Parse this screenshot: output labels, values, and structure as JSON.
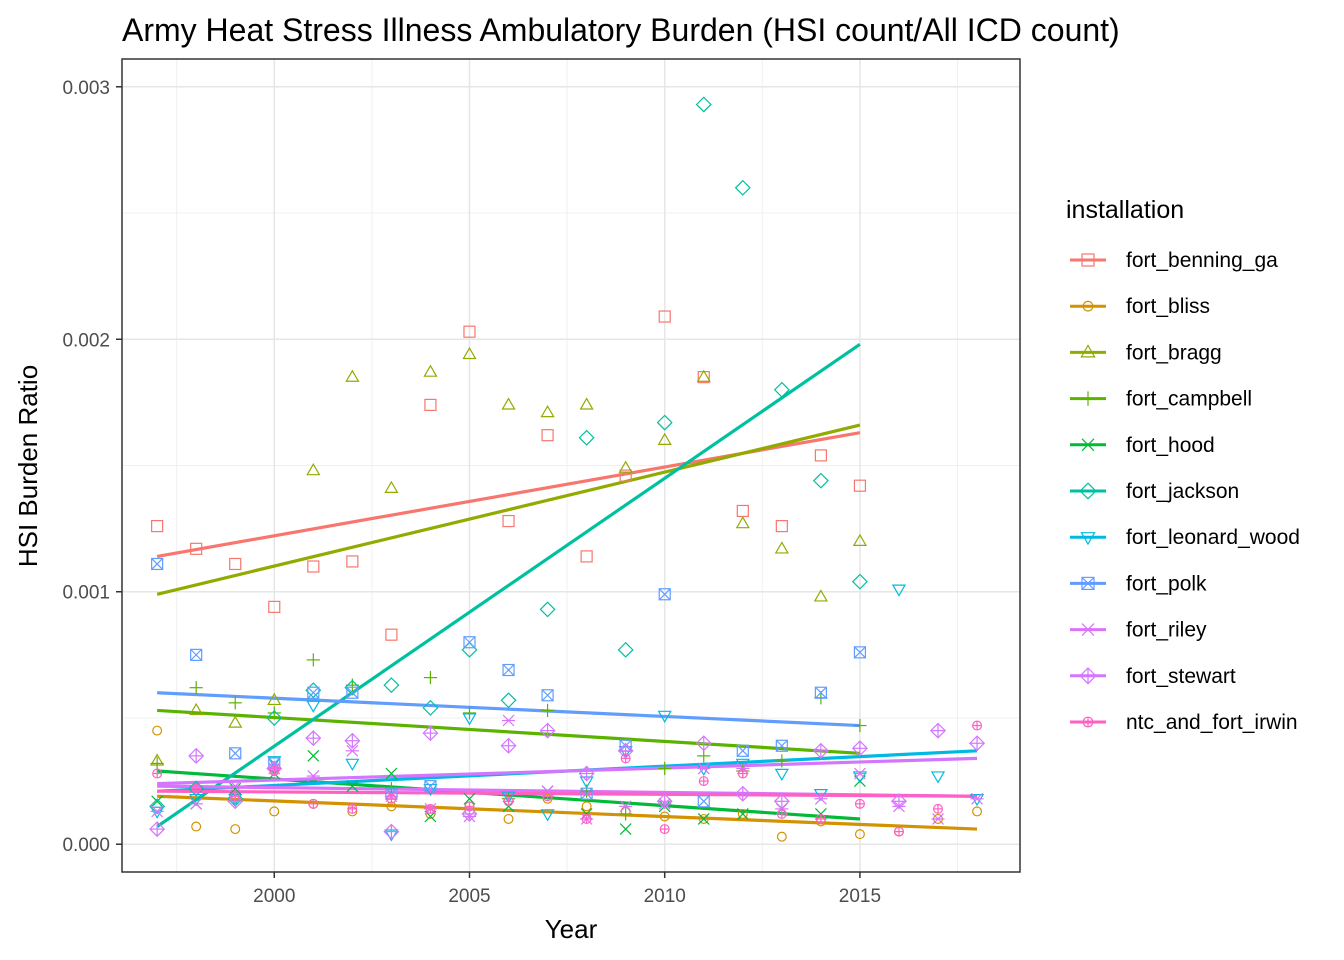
{
  "chart_data": {
    "type": "scatter",
    "title": "Army Heat Stress Illness Ambulatory Burden (HSI count/All ICD count)",
    "xlabel": "Year",
    "ylabel": "HSI Burden Ratio",
    "xlim": [
      1996.1,
      2019.1
    ],
    "ylim": [
      -0.00011,
      0.00311
    ],
    "x_ticks": [
      2000,
      2005,
      2010,
      2015
    ],
    "x_tick_labels": [
      "2000",
      "2005",
      "2010",
      "2015"
    ],
    "y_ticks": [
      0,
      0.001,
      0.002,
      0.003
    ],
    "y_tick_labels": [
      "0.000",
      "0.001",
      "0.002",
      "0.003"
    ],
    "grid": true,
    "legend": {
      "title": "installation",
      "position": "right"
    },
    "series": [
      {
        "name": "fort_benning_ga",
        "color": "#F8766D",
        "marker": "square",
        "points": [
          [
            1997,
            0.00126
          ],
          [
            1998,
            0.00117
          ],
          [
            1999,
            0.00111
          ],
          [
            2000,
            0.00094
          ],
          [
            2001,
            0.0011
          ],
          [
            2002,
            0.00112
          ],
          [
            2003,
            0.00083
          ],
          [
            2004,
            0.00174
          ],
          [
            2005,
            0.00203
          ],
          [
            2006,
            0.00128
          ],
          [
            2007,
            0.00162
          ],
          [
            2008,
            0.00114
          ],
          [
            2009,
            0.00146
          ],
          [
            2010,
            0.00209
          ],
          [
            2011,
            0.00185
          ],
          [
            2012,
            0.00132
          ],
          [
            2013,
            0.00126
          ],
          [
            2014,
            0.00154
          ],
          [
            2015,
            0.00142
          ]
        ],
        "trend": [
          [
            1997,
            0.00114
          ],
          [
            2015,
            0.00163
          ]
        ]
      },
      {
        "name": "fort_bliss",
        "color": "#D39200",
        "marker": "circle",
        "points": [
          [
            1997,
            0.00045
          ],
          [
            1998,
            7e-05
          ],
          [
            1999,
            6e-05
          ],
          [
            2000,
            0.00013
          ],
          [
            2001,
            0.00016
          ],
          [
            2002,
            0.00013
          ],
          [
            2003,
            0.00015
          ],
          [
            2004,
            0.00012
          ],
          [
            2005,
            0.00015
          ],
          [
            2006,
            0.0001
          ],
          [
            2007,
            0.00018
          ],
          [
            2008,
            0.00015
          ],
          [
            2009,
            0.00013
          ],
          [
            2010,
            0.00011
          ],
          [
            2011,
            0.0001
          ],
          [
            2012,
            0.00012
          ],
          [
            2013,
            3e-05
          ],
          [
            2014,
            9e-05
          ],
          [
            2015,
            4e-05
          ],
          [
            2016,
            5e-05
          ],
          [
            2017,
            0.0001
          ],
          [
            2018,
            0.00013
          ]
        ],
        "trend": [
          [
            1997,
            0.00019
          ],
          [
            2018,
            6e-05
          ]
        ]
      },
      {
        "name": "fort_bragg",
        "color": "#93AA00",
        "marker": "triangle",
        "points": [
          [
            1997,
            0.00033
          ],
          [
            1998,
            0.00053
          ],
          [
            1999,
            0.00048
          ],
          [
            2000,
            0.00057
          ],
          [
            2001,
            0.00148
          ],
          [
            2002,
            0.00185
          ],
          [
            2003,
            0.00141
          ],
          [
            2004,
            0.00187
          ],
          [
            2005,
            0.00194
          ],
          [
            2006,
            0.00174
          ],
          [
            2007,
            0.00171
          ],
          [
            2008,
            0.00174
          ],
          [
            2009,
            0.00149
          ],
          [
            2010,
            0.0016
          ],
          [
            2011,
            0.00185
          ],
          [
            2012,
            0.00127
          ],
          [
            2013,
            0.00117
          ],
          [
            2014,
            0.00098
          ],
          [
            2015,
            0.0012
          ]
        ],
        "trend": [
          [
            1997,
            0.00099
          ],
          [
            2015,
            0.00166
          ]
        ]
      },
      {
        "name": "fort_campbell",
        "color": "#5BB300",
        "marker": "plus",
        "points": [
          [
            1997,
            0.00032
          ],
          [
            1998,
            0.00062
          ],
          [
            1999,
            0.00056
          ],
          [
            2000,
            0.00052
          ],
          [
            2001,
            0.00073
          ],
          [
            2002,
            0.00063
          ],
          [
            2003,
            0.00022
          ],
          [
            2004,
            0.00066
          ],
          [
            2005,
            0.00052
          ],
          [
            2006,
            0.00018
          ],
          [
            2007,
            0.00053
          ],
          [
            2008,
            0.00021
          ],
          [
            2009,
            0.00012
          ],
          [
            2010,
            0.0003
          ],
          [
            2011,
            0.00035
          ],
          [
            2012,
            0.00029
          ],
          [
            2013,
            0.00033
          ],
          [
            2014,
            0.00058
          ],
          [
            2015,
            0.00047
          ]
        ],
        "trend": [
          [
            1997,
            0.00053
          ],
          [
            2015,
            0.00036
          ]
        ]
      },
      {
        "name": "fort_hood",
        "color": "#00BA38",
        "marker": "x",
        "points": [
          [
            1997,
            0.00017
          ],
          [
            1998,
            0.00016
          ],
          [
            1999,
            0.00022
          ],
          [
            2000,
            0.00028
          ],
          [
            2001,
            0.00035
          ],
          [
            2002,
            0.00023
          ],
          [
            2003,
            0.00028
          ],
          [
            2004,
            0.00011
          ],
          [
            2005,
            0.00018
          ],
          [
            2006,
            0.00015
          ],
          [
            2007,
            0.00021
          ],
          [
            2008,
            0.00012
          ],
          [
            2009,
            6e-05
          ],
          [
            2010,
            0.00015
          ],
          [
            2011,
            0.0001
          ],
          [
            2012,
            0.00012
          ],
          [
            2013,
            0.00014
          ],
          [
            2014,
            0.00012
          ],
          [
            2015,
            0.00025
          ]
        ],
        "trend": [
          [
            1997,
            0.00029
          ],
          [
            2015,
            0.0001
          ]
        ]
      },
      {
        "name": "fort_jackson",
        "color": "#00C19F",
        "marker": "diamond",
        "points": [
          [
            1997,
            0.00015
          ],
          [
            1998,
            0.00022
          ],
          [
            1999,
            0.00018
          ],
          [
            2000,
            0.0005
          ],
          [
            2001,
            0.00061
          ],
          [
            2002,
            0.00062
          ],
          [
            2003,
            0.00063
          ],
          [
            2004,
            0.00054
          ],
          [
            2005,
            0.00077
          ],
          [
            2006,
            0.00057
          ],
          [
            2007,
            0.00093
          ],
          [
            2008,
            0.00161
          ],
          [
            2009,
            0.00077
          ],
          [
            2010,
            0.00167
          ],
          [
            2011,
            0.00293
          ],
          [
            2012,
            0.0026
          ],
          [
            2013,
            0.0018
          ],
          [
            2014,
            0.00144
          ],
          [
            2015,
            0.00104
          ]
        ],
        "trend": [
          [
            1997,
            7e-05
          ],
          [
            2015,
            0.00198
          ]
        ]
      },
      {
        "name": "fort_leonard_wood",
        "color": "#00B9E3",
        "marker": "triangle-down",
        "points": [
          [
            1997,
            0.00013
          ],
          [
            1998,
            0.00018
          ],
          [
            1999,
            0.00018
          ],
          [
            2000,
            0.00033
          ],
          [
            2001,
            0.00055
          ],
          [
            2002,
            0.00032
          ],
          [
            2003,
            4e-05
          ],
          [
            2004,
            0.00022
          ],
          [
            2005,
            0.0005
          ],
          [
            2006,
            0.00019
          ],
          [
            2007,
            0.00012
          ],
          [
            2008,
            0.00025
          ],
          [
            2009,
            0.00037
          ],
          [
            2010,
            0.00051
          ],
          [
            2011,
            0.0003
          ],
          [
            2012,
            0.00032
          ],
          [
            2013,
            0.00028
          ],
          [
            2014,
            0.0002
          ],
          [
            2015,
            0.00027
          ],
          [
            2016,
            0.00101
          ],
          [
            2017,
            0.00027
          ],
          [
            2018,
            0.00018
          ]
        ],
        "trend": [
          [
            1997,
            0.00021
          ],
          [
            2018,
            0.00037
          ]
        ]
      },
      {
        "name": "fort_polk",
        "color": "#619CFF",
        "marker": "square-x",
        "points": [
          [
            1997,
            0.00111
          ],
          [
            1998,
            0.00075
          ],
          [
            1999,
            0.00036
          ],
          [
            2000,
            0.00032
          ],
          [
            2001,
            0.0006
          ],
          [
            2002,
            0.0006
          ],
          [
            2003,
            0.0002
          ],
          [
            2004,
            0.00023
          ],
          [
            2005,
            0.0008
          ],
          [
            2006,
            0.00069
          ],
          [
            2007,
            0.00059
          ],
          [
            2008,
            0.0002
          ],
          [
            2009,
            0.00039
          ],
          [
            2010,
            0.00099
          ],
          [
            2011,
            0.00017
          ],
          [
            2012,
            0.00037
          ],
          [
            2013,
            0.00039
          ],
          [
            2014,
            0.0006
          ],
          [
            2015,
            0.00076
          ]
        ],
        "trend": [
          [
            1997,
            0.0006
          ],
          [
            2015,
            0.00047
          ]
        ]
      },
      {
        "name": "fort_riley",
        "color": "#DB72FB",
        "marker": "asterisk",
        "points": [
          [
            1997,
            0.00013
          ],
          [
            1998,
            0.00016
          ],
          [
            1999,
            0.00023
          ],
          [
            2000,
            0.0003
          ],
          [
            2001,
            0.00027
          ],
          [
            2002,
            0.00037
          ],
          [
            2003,
            0.00019
          ],
          [
            2004,
            0.00014
          ],
          [
            2005,
            0.00011
          ],
          [
            2006,
            0.00049
          ],
          [
            2007,
            0.00021
          ],
          [
            2008,
            0.0001
          ],
          [
            2009,
            0.00015
          ],
          [
            2010,
            0.00016
          ],
          [
            2011,
            0.0003
          ],
          [
            2012,
            0.0003
          ],
          [
            2013,
            0.00014
          ],
          [
            2014,
            0.00018
          ],
          [
            2015,
            0.00028
          ],
          [
            2016,
            0.00015
          ],
          [
            2017,
            0.0001
          ],
          [
            2018,
            0.00018
          ]
        ],
        "trend": [
          [
            1997,
            0.00023
          ],
          [
            2018,
            0.00019
          ]
        ]
      },
      {
        "name": "fort_stewart",
        "color": "#D376FF",
        "marker": "diamond-plus",
        "points": [
          [
            1997,
            6e-05
          ],
          [
            1998,
            0.00035
          ],
          [
            1999,
            0.00017
          ],
          [
            2000,
            0.0003
          ],
          [
            2001,
            0.00042
          ],
          [
            2002,
            0.00041
          ],
          [
            2003,
            5e-05
          ],
          [
            2004,
            0.00044
          ],
          [
            2005,
            0.00012
          ],
          [
            2006,
            0.00039
          ],
          [
            2007,
            0.00045
          ],
          [
            2008,
            0.00028
          ],
          [
            2009,
            0.00037
          ],
          [
            2010,
            0.00017
          ],
          [
            2011,
            0.0004
          ],
          [
            2012,
            0.0002
          ],
          [
            2013,
            0.00017
          ],
          [
            2014,
            0.00037
          ],
          [
            2015,
            0.00038
          ],
          [
            2016,
            0.00017
          ],
          [
            2017,
            0.00045
          ],
          [
            2018,
            0.0004
          ]
        ],
        "trend": [
          [
            1997,
            0.00024
          ],
          [
            2018,
            0.00034
          ]
        ]
      },
      {
        "name": "ntc_and_fort_irwin",
        "color": "#FF61C3",
        "marker": "circle-plus",
        "points": [
          [
            1997,
            0.00028
          ],
          [
            1998,
            0.00022
          ],
          [
            1999,
            0.00019
          ],
          [
            2000,
            0.00029
          ],
          [
            2001,
            0.00016
          ],
          [
            2002,
            0.00014
          ],
          [
            2003,
            0.00018
          ],
          [
            2004,
            0.00014
          ],
          [
            2005,
            0.00015
          ],
          [
            2006,
            0.00017
          ],
          [
            2007,
            0.00019
          ],
          [
            2008,
            0.0001
          ],
          [
            2009,
            0.00034
          ],
          [
            2010,
            6e-05
          ],
          [
            2011,
            0.00025
          ],
          [
            2012,
            0.00028
          ],
          [
            2013,
            0.00012
          ],
          [
            2014,
            0.0001
          ],
          [
            2015,
            0.00016
          ],
          [
            2016,
            5e-05
          ],
          [
            2017,
            0.00014
          ],
          [
            2018,
            0.00047
          ]
        ],
        "trend": [
          [
            1997,
            0.00021
          ],
          [
            2018,
            0.00019
          ]
        ]
      }
    ]
  }
}
